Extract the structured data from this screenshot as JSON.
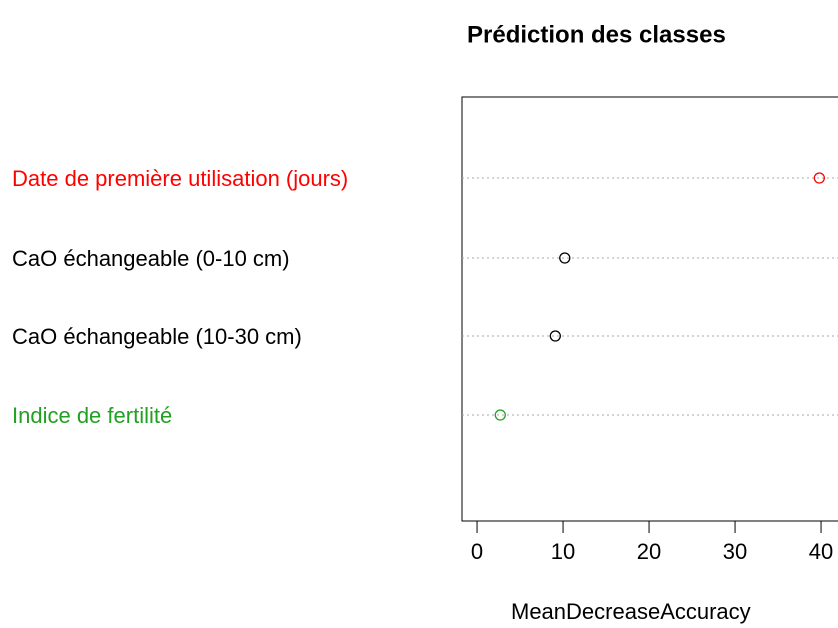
{
  "chart_data": {
    "type": "dot",
    "title": "Prédiction des classes",
    "x_label": "MeanDecreaseAccuracy",
    "categories": [
      "Date de première utilisation (jours)",
      "CaO échangeable (0-10 cm)",
      "CaO échangeable (10-30 cm)",
      "Indice de fertilité"
    ],
    "values": [
      39.8,
      10.2,
      9.1,
      2.7
    ],
    "colors": [
      "#ff0000",
      "#000000",
      "#000000",
      "#22a022"
    ],
    "xlim": [
      -1.75,
      42
    ],
    "xticks": [
      0,
      10,
      20,
      30,
      40
    ],
    "grid": true
  }
}
